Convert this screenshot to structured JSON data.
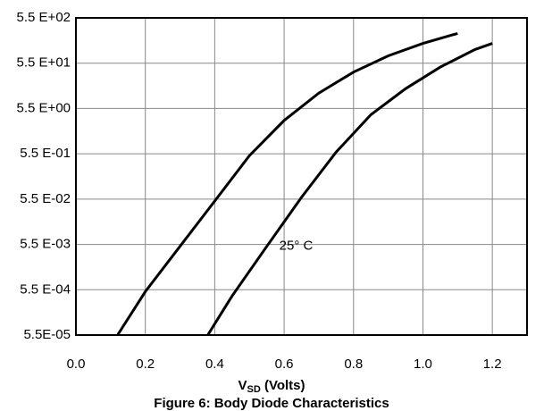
{
  "chart_data": {
    "type": "line",
    "title": "Figure 6: Body Diode Characteristics",
    "xlabel": "V",
    "xlabel_sub": "SD",
    "xlabel_unit": " (Volts)",
    "log_y": true,
    "grid": true,
    "xlim": [
      0.0,
      1.3
    ],
    "xticks": [
      {
        "value": 0,
        "label": "0.0"
      },
      0.2,
      0.4,
      0.6,
      0.8,
      {
        "value": 1,
        "label": "1.0"
      },
      1.2
    ],
    "ylim": [
      5.5e-05,
      550
    ],
    "yticks": [
      {
        "value": 550,
        "label": "5.5 E+02"
      },
      {
        "value": 55,
        "label": "5.5 E+01"
      },
      {
        "value": 5.5,
        "label": "5.5 E+00"
      },
      {
        "value": 0.55,
        "label": "5.5 E-01"
      },
      {
        "value": 0.055,
        "label": "5.5 E-02"
      },
      {
        "value": 0.0055,
        "label": "5.5 E-03"
      },
      {
        "value": 0.00055,
        "label": "5.5 E-04"
      },
      {
        "value": 5.5e-05,
        "label": "5.5E-05"
      }
    ],
    "series": [
      {
        "color": "#000000",
        "x": [
          0.12,
          0.2,
          0.3,
          0.4,
          0.5,
          0.6,
          0.7,
          0.8,
          0.9,
          1.0,
          1.1
        ],
        "values": [
          5.5e-05,
          0.0005,
          0.005,
          0.05,
          0.5,
          3,
          12,
          35,
          80,
          150,
          250
        ]
      },
      {
        "name": "25° C",
        "color": "#000000",
        "x": [
          0.38,
          0.45,
          0.55,
          0.65,
          0.75,
          0.85,
          0.95,
          1.05,
          1.15,
          1.2
        ],
        "values": [
          5.5e-05,
          0.0004,
          0.005,
          0.06,
          0.6,
          4,
          15,
          45,
          110,
          150
        ]
      }
    ]
  }
}
